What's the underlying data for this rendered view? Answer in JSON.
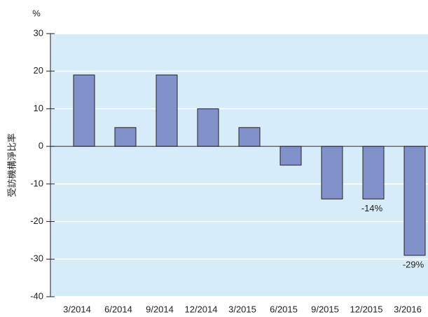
{
  "chart_data": {
    "type": "bar",
    "y_label": "受訪機構淨比率",
    "y_unit": "%",
    "categories": [
      "3/2014",
      "6/2014",
      "9/2014",
      "12/2014",
      "3/2015",
      "6/2015",
      "9/2015",
      "12/2015",
      "3/2016"
    ],
    "values": [
      19,
      5,
      19,
      10,
      5,
      -5,
      -14,
      -14,
      -29
    ],
    "value_labels": [
      null,
      null,
      null,
      null,
      null,
      null,
      null,
      "-14%",
      "-29%"
    ],
    "color": "#8191c9",
    "ylim": [
      -40,
      30
    ],
    "yticks": [
      -40,
      -30,
      -20,
      -10,
      0,
      10,
      20,
      30
    ],
    "grid": true
  }
}
